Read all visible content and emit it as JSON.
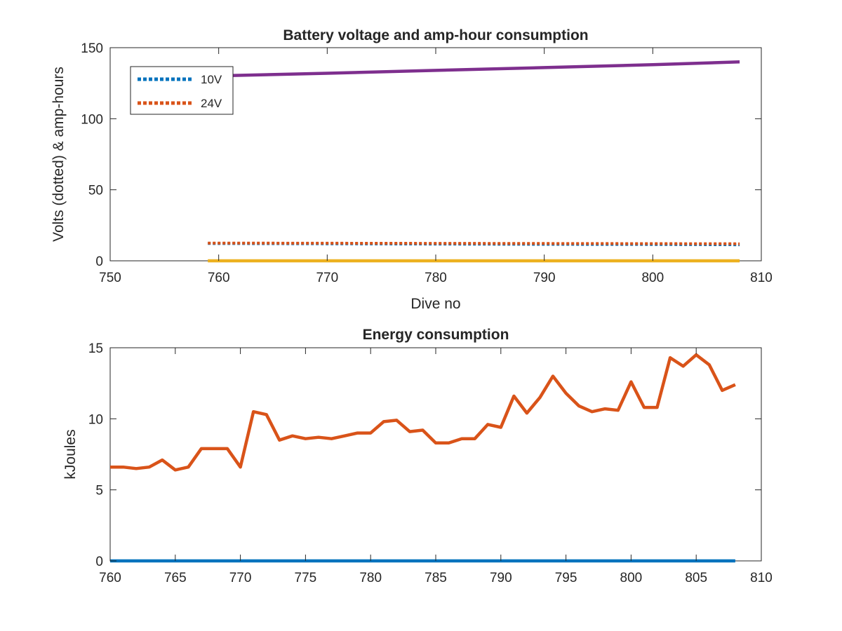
{
  "chart_data": [
    {
      "type": "line",
      "title": "Battery voltage and amp-hour consumption",
      "xlabel": "Dive no",
      "ylabel": "Volts (dotted) & amp-hours",
      "xlim": [
        750,
        810
      ],
      "ylim": [
        0,
        150
      ],
      "xticks": [
        750,
        760,
        770,
        780,
        790,
        800,
        810
      ],
      "yticks": [
        0,
        50,
        100,
        150
      ],
      "grid": false,
      "legend_position": "top-left",
      "series": [
        {
          "name": "10V",
          "style": "dotted",
          "color": "#0072BD",
          "x": [
            759,
            770,
            780,
            790,
            800,
            808
          ],
          "y": [
            12.2,
            12.0,
            11.8,
            11.6,
            11.5,
            11.3
          ]
        },
        {
          "name": "24V",
          "style": "dotted",
          "color": "#D95319",
          "x": [
            759,
            770,
            780,
            790,
            800,
            808
          ],
          "y": [
            12.5,
            12.4,
            12.3,
            12.2,
            12.1,
            12.0
          ]
        },
        {
          "style": "solid",
          "color": "#EDB120",
          "x": [
            759,
            808
          ],
          "y": [
            0,
            0
          ]
        },
        {
          "style": "solid",
          "color": "#7E2F8E",
          "x": [
            759,
            770,
            780,
            790,
            800,
            808
          ],
          "y": [
            130,
            132,
            134,
            136,
            138,
            140
          ]
        }
      ]
    },
    {
      "type": "line",
      "title": "Energy consumption",
      "xlabel": "",
      "ylabel": "kJoules",
      "xlim": [
        760,
        810
      ],
      "ylim": [
        0,
        15
      ],
      "xticks": [
        760,
        765,
        770,
        775,
        780,
        785,
        790,
        795,
        800,
        805,
        810
      ],
      "yticks": [
        0,
        5,
        10,
        15
      ],
      "grid": false,
      "series": [
        {
          "style": "solid",
          "color": "#0072BD",
          "x": [
            760,
            808
          ],
          "y": [
            0,
            0
          ]
        },
        {
          "style": "solid",
          "color": "#D95319",
          "x": [
            760,
            761,
            762,
            763,
            764,
            765,
            766,
            767,
            768,
            769,
            770,
            771,
            772,
            773,
            774,
            775,
            776,
            777,
            778,
            779,
            780,
            781,
            782,
            783,
            784,
            785,
            786,
            787,
            788,
            789,
            790,
            791,
            792,
            793,
            794,
            795,
            796,
            797,
            798,
            799,
            800,
            801,
            802,
            803,
            804,
            805,
            806,
            807,
            808
          ],
          "y": [
            6.6,
            6.6,
            6.5,
            6.6,
            7.1,
            6.4,
            6.6,
            7.9,
            7.9,
            7.9,
            6.6,
            10.5,
            10.3,
            8.5,
            8.8,
            8.6,
            8.7,
            8.6,
            8.8,
            9.0,
            9.0,
            9.8,
            9.9,
            9.1,
            9.2,
            8.3,
            8.3,
            8.6,
            8.6,
            9.6,
            9.4,
            11.6,
            10.4,
            11.5,
            13.0,
            11.8,
            10.9,
            10.5,
            10.7,
            10.6,
            12.6,
            10.8,
            10.8,
            14.3,
            13.7,
            14.5,
            13.8,
            12.0,
            12.4
          ]
        }
      ]
    }
  ]
}
